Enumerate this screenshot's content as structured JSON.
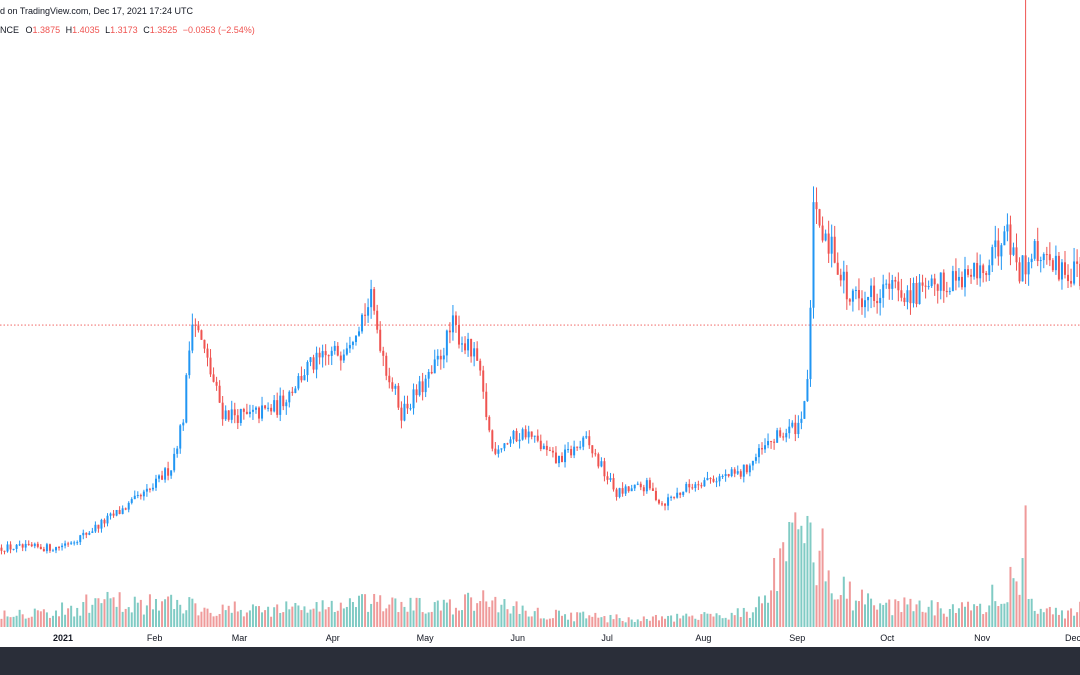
{
  "header": {
    "attribution": "d on TradingView.com, Dec 17, 2021 17:24 UTC",
    "symbol_tail": "NCE",
    "o_label": "O",
    "o_value": "1.3875",
    "h_label": "H",
    "h_value": "1.4035",
    "l_label": "L",
    "l_value": "1.3173",
    "c_label": "C",
    "c_value": "1.3525",
    "change": "−0.0353 (−2.54%)"
  },
  "colors": {
    "up": "#2196f3",
    "down": "#ef5350",
    "vol_up": "#80cbc4",
    "vol_down": "#ef9a9a",
    "price_line": "#ef5350",
    "background": "#ffffff"
  },
  "chart_data": {
    "type": "candlestick",
    "y_axis": "not shown",
    "grid": false,
    "x_tick_labels": [
      "2021",
      "Feb",
      "Mar",
      "Apr",
      "May",
      "Jun",
      "Jul",
      "Aug",
      "Sep",
      "Oct",
      "Nov",
      "Dec"
    ],
    "last_price_line": 1.3525,
    "price_estimate_note": "",
    "price_anchors": {
      "dates": [
        "2021-01-01",
        "2021-01-10",
        "2021-01-20",
        "2021-02-01",
        "2021-02-08",
        "2021-02-12",
        "2021-02-15",
        "2021-02-20",
        "2021-02-25",
        "2021-03-05",
        "2021-03-15",
        "2021-03-25",
        "2021-04-05",
        "2021-04-15",
        "2021-04-20",
        "2021-04-25",
        "2021-05-05",
        "2021-05-12",
        "2021-05-20",
        "2021-05-25",
        "2021-06-05",
        "2021-06-15",
        "2021-06-25",
        "2021-07-05",
        "2021-07-15",
        "2021-07-20",
        "2021-08-01",
        "2021-08-15",
        "2021-08-25",
        "2021-09-03",
        "2021-09-06",
        "2021-09-08",
        "2021-09-15",
        "2021-09-20",
        "2021-10-01",
        "2021-10-15",
        "2021-10-25",
        "2021-11-05",
        "2021-11-10",
        "2021-11-15",
        "2021-11-20",
        "2021-11-25",
        "2021-12-05",
        "2021-12-10",
        "2021-12-17"
      ],
      "close": [
        0.45,
        0.5,
        0.58,
        0.68,
        0.78,
        0.98,
        1.4,
        1.2,
        1.0,
        0.98,
        1.02,
        1.18,
        1.25,
        1.45,
        1.18,
        1.0,
        1.15,
        1.35,
        1.2,
        0.85,
        0.92,
        0.8,
        0.88,
        0.67,
        0.7,
        0.63,
        0.72,
        0.75,
        0.88,
        0.95,
        1.1,
        1.8,
        1.65,
        1.45,
        1.5,
        1.48,
        1.55,
        1.58,
        1.75,
        1.58,
        1.65,
        1.6,
        1.55,
        1.45,
        1.35
      ]
    },
    "volume_anchors": {
      "dates": [
        "2021-01-01",
        "2021-01-15",
        "2021-02-12",
        "2021-03-01",
        "2021-03-20",
        "2021-04-15",
        "2021-05-10",
        "2021-05-22",
        "2021-06-10",
        "2021-07-10",
        "2021-08-01",
        "2021-08-20",
        "2021-09-07",
        "2021-09-15",
        "2021-10-01",
        "2021-11-01",
        "2021-11-15",
        "2021-11-20",
        "2021-12-17"
      ],
      "volume": [
        0.8,
        1.3,
        1.2,
        0.9,
        1.0,
        1.2,
        1.0,
        1.4,
        0.7,
        0.4,
        0.5,
        0.9,
        5.5,
        2.0,
        1.1,
        0.9,
        3.0,
        0.8,
        1.0
      ]
    },
    "volume_spikes": [
      {
        "date": "2021-09-07",
        "volume": 5.5
      },
      {
        "date": "2021-09-08",
        "volume": 3.4
      },
      {
        "date": "2021-09-09",
        "volume": 2.2
      },
      {
        "date": "2021-11-14",
        "volume": 2.4
      },
      {
        "date": "2021-11-17",
        "volume": 6.4
      }
    ],
    "wick_spikes": [
      {
        "date": "2021-11-17",
        "high": 2.95
      },
      {
        "date": "2021-12-11",
        "low": 1.32
      }
    ]
  }
}
